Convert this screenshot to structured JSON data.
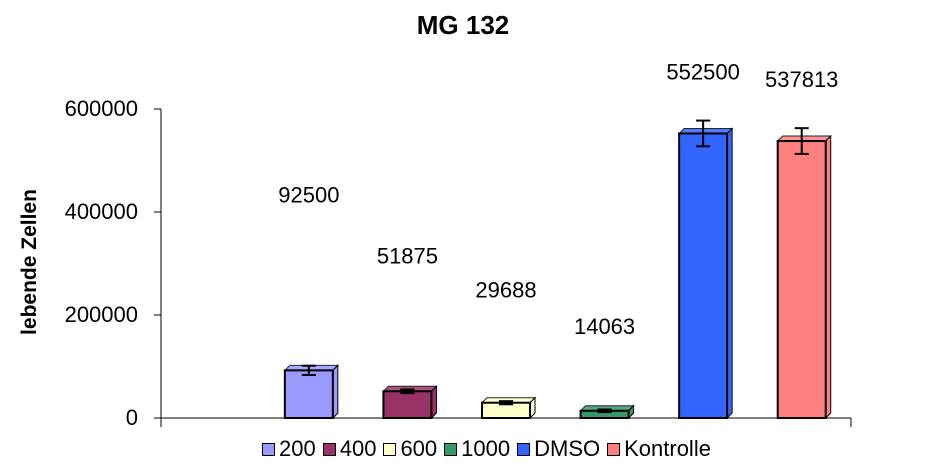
{
  "chart_data": {
    "type": "bar",
    "title": "MG 132",
    "xlabel": "",
    "ylabel": "lebende Zellen",
    "ylim": [
      0,
      600000
    ],
    "yticks": [
      "0",
      "200000",
      "400000",
      "600000"
    ],
    "grid": false,
    "legend_position": "bottom",
    "series": [
      {
        "name": "200",
        "value": 92500,
        "label": "92500",
        "error": 9000,
        "color": "#9999ff"
      },
      {
        "name": "400",
        "value": 51875,
        "label": "51875",
        "error": 3500,
        "color": "#993366"
      },
      {
        "name": "600",
        "value": 29688,
        "label": "29688",
        "error": 3000,
        "color": "#ffffcc"
      },
      {
        "name": "1000",
        "value": 14063,
        "label": "14063",
        "error": 2500,
        "color": "#339966"
      },
      {
        "name": "DMSO",
        "value": 552500,
        "label": "552500",
        "error": 25000,
        "color": "#3366ff"
      },
      {
        "name": "Kontrolle",
        "value": 537813,
        "label": "537813",
        "error": 25000,
        "color": "#ff8080"
      }
    ]
  }
}
